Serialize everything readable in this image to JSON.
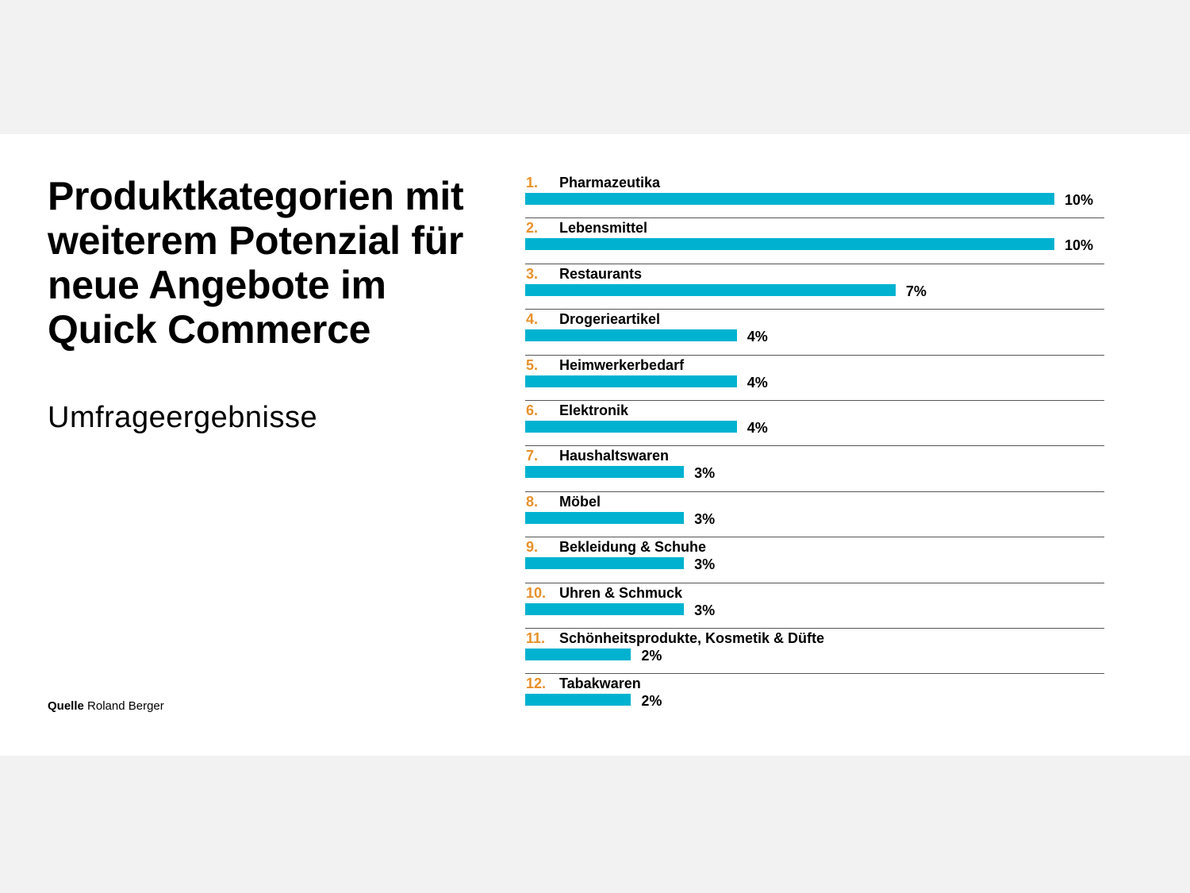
{
  "title": "Produktkategorien mit weiterem Potenzial für neue Angebote im Quick Commerce",
  "subtitle": "Umfrageergebnisse",
  "source": {
    "label": "Quelle",
    "value": "Roland Berger"
  },
  "colors": {
    "bar": "#00b2d0",
    "rank": "#e8912a"
  },
  "chart_data": {
    "type": "bar",
    "orientation": "horizontal",
    "title": "Produktkategorien mit weiterem Potenzial für neue Angebote im Quick Commerce",
    "subtitle": "Umfrageergebnisse",
    "xlim": [
      0,
      10
    ],
    "unit": "%",
    "items": [
      {
        "rank": "1.",
        "category": "Pharmazeutika",
        "value": 10,
        "label": "10%"
      },
      {
        "rank": "2.",
        "category": "Lebensmittel",
        "value": 10,
        "label": "10%"
      },
      {
        "rank": "3.",
        "category": "Restaurants",
        "value": 7,
        "label": "7%"
      },
      {
        "rank": "4.",
        "category": "Drogerieartikel",
        "value": 4,
        "label": "4%"
      },
      {
        "rank": "5.",
        "category": "Heimwerkerbedarf",
        "value": 4,
        "label": "4%"
      },
      {
        "rank": "6.",
        "category": "Elektronik",
        "value": 4,
        "label": "4%"
      },
      {
        "rank": "7.",
        "category": "Haushaltswaren",
        "value": 3,
        "label": "3%"
      },
      {
        "rank": "8.",
        "category": "Möbel",
        "value": 3,
        "label": "3%"
      },
      {
        "rank": "9.",
        "category": "Bekleidung & Schuhe",
        "value": 3,
        "label": "3%"
      },
      {
        "rank": "10.",
        "category": "Uhren & Schmuck",
        "value": 3,
        "label": "3%"
      },
      {
        "rank": "11.",
        "category": "Schönheitsprodukte, Kosmetik & Düfte",
        "value": 2,
        "label": "2%"
      },
      {
        "rank": "12.",
        "category": "Tabakwaren",
        "value": 2,
        "label": "2%"
      }
    ]
  }
}
